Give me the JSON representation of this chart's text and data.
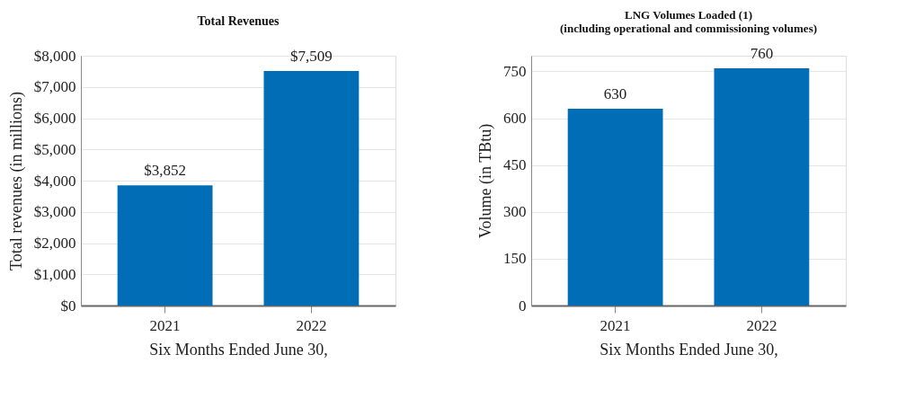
{
  "chart_data": [
    {
      "type": "bar",
      "title": "Total Revenues",
      "xlabel": "Six Months Ended June 30,",
      "ylabel": "Total revenues (in millions)",
      "categories": [
        "2021",
        "2022"
      ],
      "series": [
        {
          "color": "#006db6",
          "values": [
            3852,
            7509
          ],
          "value_labels": [
            "$3,852",
            "$7,509"
          ]
        }
      ],
      "ylim": [
        0,
        8000
      ],
      "yticks": [
        {
          "value": 0,
          "label": "$0"
        },
        {
          "value": 1000,
          "label": "$1,000"
        },
        {
          "value": 2000,
          "label": "$2,000"
        },
        {
          "value": 3000,
          "label": "$3,000"
        },
        {
          "value": 4000,
          "label": "$4,000"
        },
        {
          "value": 5000,
          "label": "$5,000"
        },
        {
          "value": 6000,
          "label": "$6,000"
        },
        {
          "value": 7000,
          "label": "$7,000"
        },
        {
          "value": 8000,
          "label": "$8,000"
        }
      ],
      "grid": "y"
    },
    {
      "type": "bar",
      "title": "LNG Volumes Loaded (1)",
      "subtitle": "(including operational and commissioning volumes)",
      "xlabel": "Six Months Ended June 30,",
      "ylabel": "Volume (in TBtu)",
      "categories": [
        "2021",
        "2022"
      ],
      "series": [
        {
          "color": "#006db6",
          "values": [
            630,
            760
          ]
        }
      ],
      "ylim": [
        0,
        800
      ],
      "yticks": [
        0,
        150,
        300,
        450,
        600,
        750
      ],
      "data_labels": true,
      "grid": "y"
    }
  ]
}
